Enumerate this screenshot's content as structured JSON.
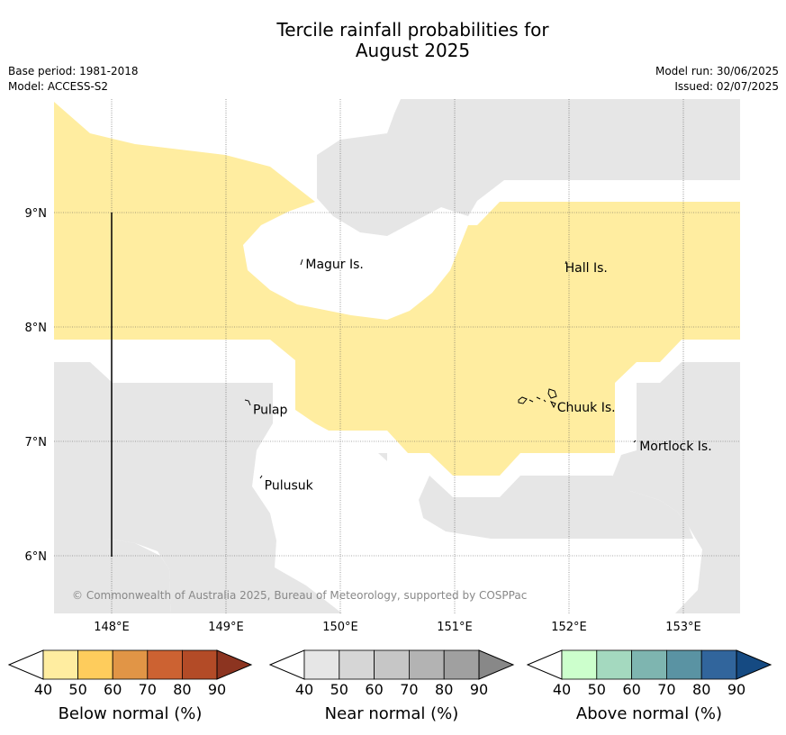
{
  "title": {
    "line1": "Tercile rainfall probabilities for",
    "line2": "August 2025"
  },
  "meta": {
    "base_period": "Base period: 1981-2018",
    "model": "Model: ACCESS-S2",
    "model_run": "Model run: 30/06/2025",
    "issued": "Issued: 02/07/2025"
  },
  "map": {
    "lon_range": [
      147.5,
      153.5
    ],
    "lat_range": [
      5.5,
      10.0
    ],
    "lon_ticks": [
      {
        "value": 148,
        "label": "148°E"
      },
      {
        "value": 149,
        "label": "149°E"
      },
      {
        "value": 150,
        "label": "150°E"
      },
      {
        "value": 151,
        "label": "151°E"
      },
      {
        "value": 152,
        "label": "152°E"
      },
      {
        "value": 153,
        "label": "153°E"
      }
    ],
    "lat_ticks": [
      {
        "value": 9,
        "label": "9°N"
      },
      {
        "value": 8,
        "label": "8°N"
      },
      {
        "value": 7,
        "label": "7°N"
      },
      {
        "value": 6,
        "label": "6°N"
      }
    ],
    "grid": true,
    "colors": {
      "below_40_50": "#ffeda0",
      "near_40_50": "#e6e6e6",
      "background": "#ffffff"
    },
    "places": [
      {
        "name": "Magur Is.",
        "lon": 149.68,
        "lat": 8.55
      },
      {
        "name": "Hall Is.",
        "lon": 151.95,
        "lat": 8.52
      },
      {
        "name": "Pulap",
        "lon": 149.22,
        "lat": 7.28
      },
      {
        "name": "Chuuk Is.",
        "lon": 151.88,
        "lat": 7.3
      },
      {
        "name": "Mortlock Is.",
        "lon": 152.6,
        "lat": 6.96
      },
      {
        "name": "Pulusuk",
        "lon": 149.32,
        "lat": 6.62
      }
    ],
    "copyright": "© Commonwealth of Australia 2025, Bureau of Meteorology, supported by COSPPac"
  },
  "colorbars": [
    {
      "id": "below",
      "label": "Below normal (%)",
      "ticks": [
        "40",
        "50",
        "60",
        "70",
        "80",
        "90"
      ],
      "colors": [
        "#ffeda0",
        "#fecc5c",
        "#e19546",
        "#cc6232",
        "#b34b27"
      ],
      "extend_color": "#8c3420"
    },
    {
      "id": "near",
      "label": "Near normal (%)",
      "ticks": [
        "40",
        "50",
        "60",
        "70",
        "80",
        "90"
      ],
      "colors": [
        "#e6e6e6",
        "#d6d6d6",
        "#c6c6c6",
        "#b3b3b3",
        "#a0a0a0"
      ],
      "extend_color": "#888888"
    },
    {
      "id": "above",
      "label": "Above normal (%)",
      "ticks": [
        "40",
        "50",
        "60",
        "70",
        "80",
        "90"
      ],
      "colors": [
        "#ccffcc",
        "#a4d9bf",
        "#7eb5b0",
        "#5a93a3",
        "#31659c"
      ],
      "extend_color": "#154a82"
    }
  ]
}
